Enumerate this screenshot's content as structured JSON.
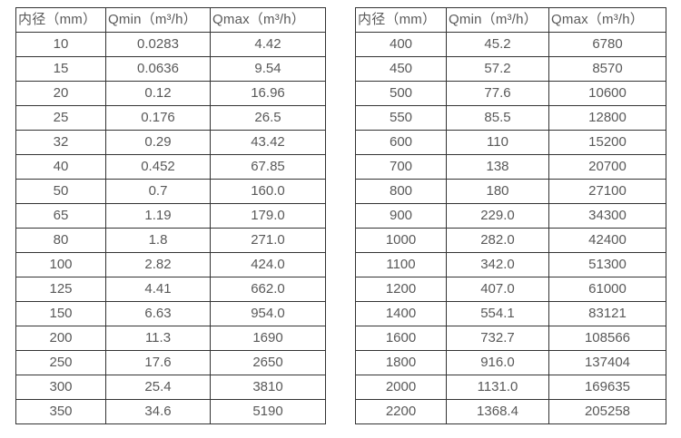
{
  "colors": {
    "border": "#333333",
    "text": "#595959",
    "background": "#ffffff"
  },
  "chart_data": [
    {
      "type": "table",
      "title": "",
      "headers": [
        "内径（mm）",
        "Qmin（m³/h）",
        "Qmax（m³/h）"
      ],
      "rows": [
        [
          "10",
          "0.0283",
          "4.42"
        ],
        [
          "15",
          "0.0636",
          "9.54"
        ],
        [
          "20",
          "0.12",
          "16.96"
        ],
        [
          "25",
          "0.176",
          "26.5"
        ],
        [
          "32",
          "0.29",
          "43.42"
        ],
        [
          "40",
          "0.452",
          "67.85"
        ],
        [
          "50",
          "0.7",
          "160.0"
        ],
        [
          "65",
          "1.19",
          "179.0"
        ],
        [
          "80",
          "1.8",
          "271.0"
        ],
        [
          "100",
          "2.82",
          "424.0"
        ],
        [
          "125",
          "4.41",
          "662.0"
        ],
        [
          "150",
          "6.63",
          "954.0"
        ],
        [
          "200",
          "11.3",
          "1690"
        ],
        [
          "250",
          "17.6",
          "2650"
        ],
        [
          "300",
          "25.4",
          "3810"
        ],
        [
          "350",
          "34.6",
          "5190"
        ]
      ]
    },
    {
      "type": "table",
      "title": "",
      "headers": [
        "内径（mm）",
        "Qmin（m³/h）",
        "Qmax（m³/h）"
      ],
      "rows": [
        [
          "400",
          "45.2",
          "6780"
        ],
        [
          "450",
          "57.2",
          "8570"
        ],
        [
          "500",
          "77.6",
          "10600"
        ],
        [
          "550",
          "85.5",
          "12800"
        ],
        [
          "600",
          "110",
          "15200"
        ],
        [
          "700",
          "138",
          "20700"
        ],
        [
          "800",
          "180",
          "27100"
        ],
        [
          "900",
          "229.0",
          "34300"
        ],
        [
          "1000",
          "282.0",
          "42400"
        ],
        [
          "1100",
          "342.0",
          "51300"
        ],
        [
          "1200",
          "407.0",
          "61000"
        ],
        [
          "1400",
          "554.1",
          "83121"
        ],
        [
          "1600",
          "732.7",
          "108566"
        ],
        [
          "1800",
          "916.0",
          "137404"
        ],
        [
          "2000",
          "1131.0",
          "169635"
        ],
        [
          "2200",
          "1368.4",
          "205258"
        ]
      ]
    }
  ]
}
